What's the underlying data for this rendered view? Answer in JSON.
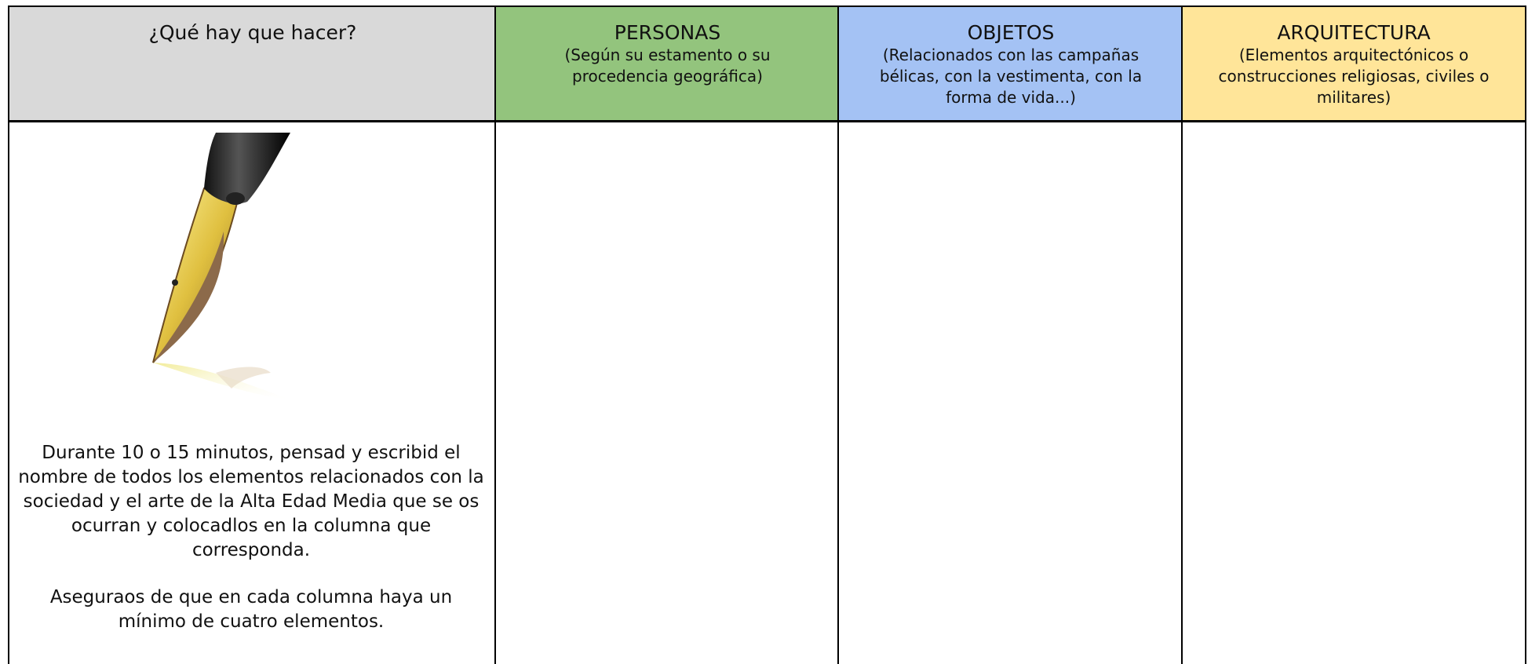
{
  "table": {
    "header": [
      {
        "title": "¿Qué hay que hacer?"
      },
      {
        "title": "PERSONAS",
        "subtitle": "(Según su estamento o su procedencia geográfica)"
      },
      {
        "title": "OBJETOS",
        "subtitle": "(Relacionados con las campañas bélicas, con la vestimenta, con la forma de vida...)"
      },
      {
        "title": "ARQUITECTURA",
        "subtitle": "(Elementos arquitectónicos o construcciones religiosas, civiles o militares)"
      }
    ],
    "instructions": [
      "Durante 10 o 15 minutos, pensad y escribid el nombre de todos los elementos relacionados con la sociedad y el arte de la Alta Edad Media que se os ocurran y colocadlos en la columna que corresponda.",
      "Aseguraos de que en cada columna haya un mínimo de cuatro elementos."
    ]
  }
}
